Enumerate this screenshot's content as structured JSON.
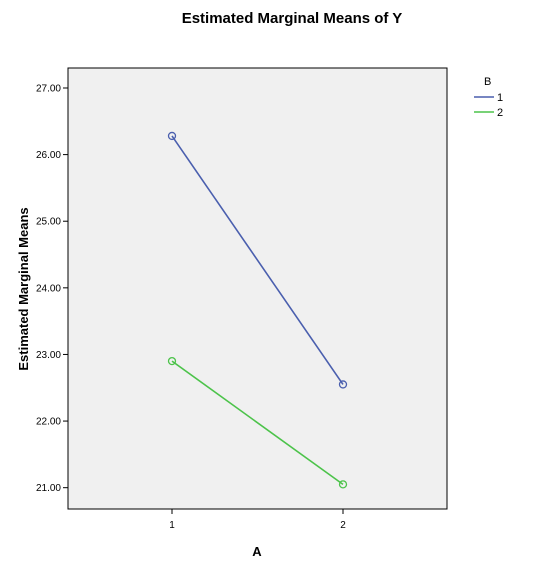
{
  "chart_data": {
    "type": "line",
    "title": "Estimated Marginal Means of Y",
    "xlabel": "A",
    "ylabel": "Estimated Marginal Means",
    "categories": [
      "1",
      "2"
    ],
    "ylim": [
      20.68,
      27.3
    ],
    "yticks": [
      "21.00",
      "22.00",
      "23.00",
      "24.00",
      "25.00",
      "26.00",
      "27.00"
    ],
    "y_tick_values": [
      21,
      22,
      23,
      24,
      25,
      26,
      27
    ],
    "grid": false,
    "legend": {
      "title": "B",
      "placement": "top-right outside"
    },
    "series": [
      {
        "name": "1",
        "values": [
          26.28,
          22.55
        ],
        "color": "#4a5fae"
      },
      {
        "name": "2",
        "values": [
          22.9,
          21.05
        ],
        "color": "#4cc34a"
      }
    ],
    "marker": "open-circle",
    "plot_background": "#f0f0f0"
  }
}
